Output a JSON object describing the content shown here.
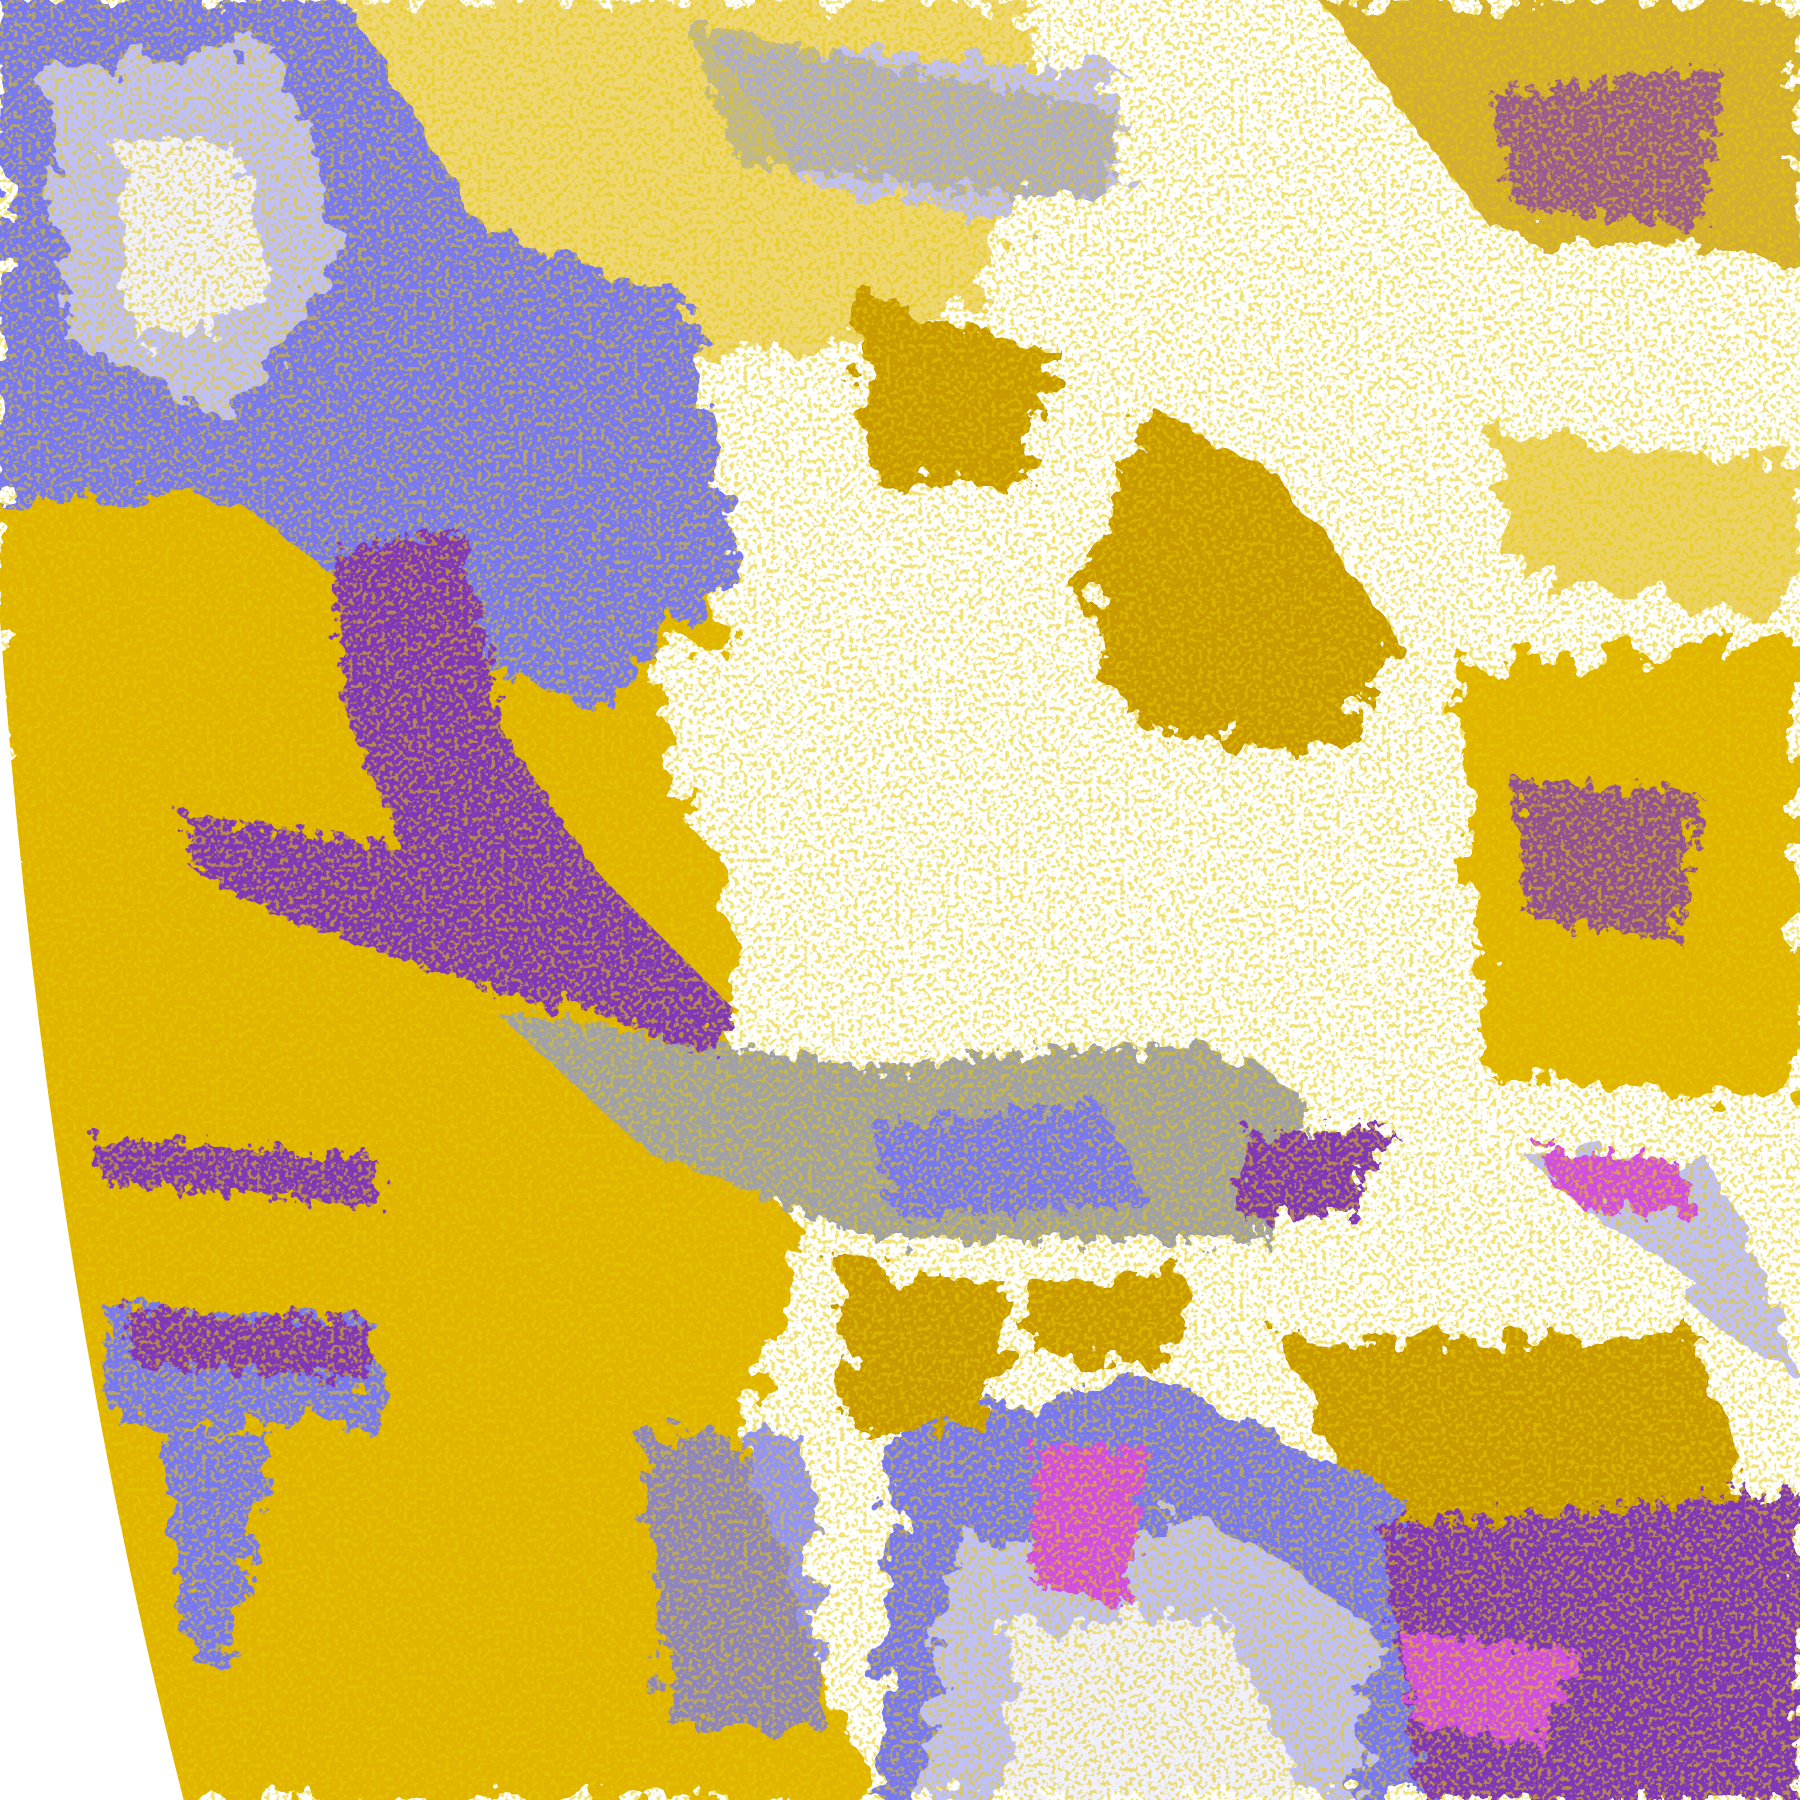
{
  "map": {
    "colors": {
      "background": "#ffffff",
      "gold": "#e0b400",
      "dark_gold": "#c89a00",
      "purple": "#8038b8",
      "violet_blue": "#7878f0",
      "lavender": "#c0c0f8",
      "pale_lavender": "#f0f0ff",
      "magenta": "#d050e0",
      "gray": "#a0a0a8"
    }
  }
}
